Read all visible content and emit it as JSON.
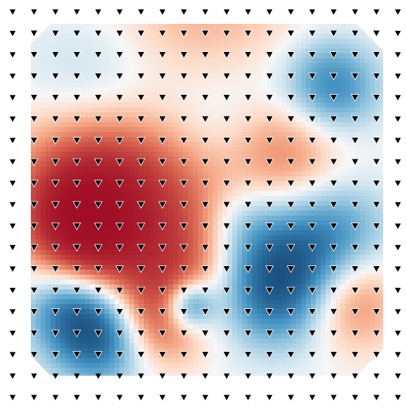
{
  "chart_data": {
    "type": "heatmap",
    "colormap": "RdBu_r",
    "colors": {
      "strong_red": "#9e0a23",
      "red": "#d6604d",
      "light_red": "#f4a582",
      "pale_red": "#fddbc7",
      "neutral": "#f7f7f7",
      "pale_blue": "#d1e5f0",
      "light_blue": "#92c5de",
      "blue": "#4393c3",
      "strong_blue": "#053061"
    },
    "marker": {
      "shape": "triangle-down",
      "fill_on_background": "#000000",
      "fill_on_field": "#000000",
      "edge_on_field": "#ffffff"
    },
    "grid": {
      "cols": 19,
      "rows": 19
    },
    "field_blobs": [
      {
        "cx": 0.2,
        "cy": 0.42,
        "r": 0.17,
        "v": -1.0
      },
      {
        "cx": 0.14,
        "cy": 0.55,
        "r": 0.1,
        "v": -0.85
      },
      {
        "cx": 0.48,
        "cy": 0.08,
        "r": 0.22,
        "v": -0.45
      },
      {
        "cx": 0.73,
        "cy": 0.36,
        "r": 0.12,
        "v": -0.55
      },
      {
        "cx": 0.45,
        "cy": 0.54,
        "r": 0.15,
        "v": -0.35
      },
      {
        "cx": 0.2,
        "cy": 0.66,
        "r": 0.12,
        "v": -0.45
      },
      {
        "cx": 0.42,
        "cy": 0.72,
        "r": 0.11,
        "v": -0.4
      },
      {
        "cx": 0.35,
        "cy": 0.85,
        "r": 0.09,
        "v": -0.6
      },
      {
        "cx": 0.9,
        "cy": 0.78,
        "r": 0.1,
        "v": -0.6
      },
      {
        "cx": 0.2,
        "cy": 0.21,
        "r": 0.16,
        "v": 0.55
      },
      {
        "cx": 0.55,
        "cy": 0.25,
        "r": 0.16,
        "v": 0.45
      },
      {
        "cx": 0.85,
        "cy": 0.18,
        "r": 0.1,
        "v": 0.75
      },
      {
        "cx": 0.7,
        "cy": 0.74,
        "r": 0.12,
        "v": 1.0
      },
      {
        "cx": 0.2,
        "cy": 0.88,
        "r": 0.1,
        "v": 0.95
      },
      {
        "cx": 0.45,
        "cy": 0.8,
        "r": 0.05,
        "v": 0.9
      },
      {
        "cx": 0.85,
        "cy": 0.6,
        "r": 0.12,
        "v": 0.6
      },
      {
        "cx": 0.1,
        "cy": 0.8,
        "r": 0.09,
        "v": 0.55
      },
      {
        "cx": 0.6,
        "cy": 0.56,
        "r": 0.08,
        "v": 0.3
      }
    ]
  }
}
